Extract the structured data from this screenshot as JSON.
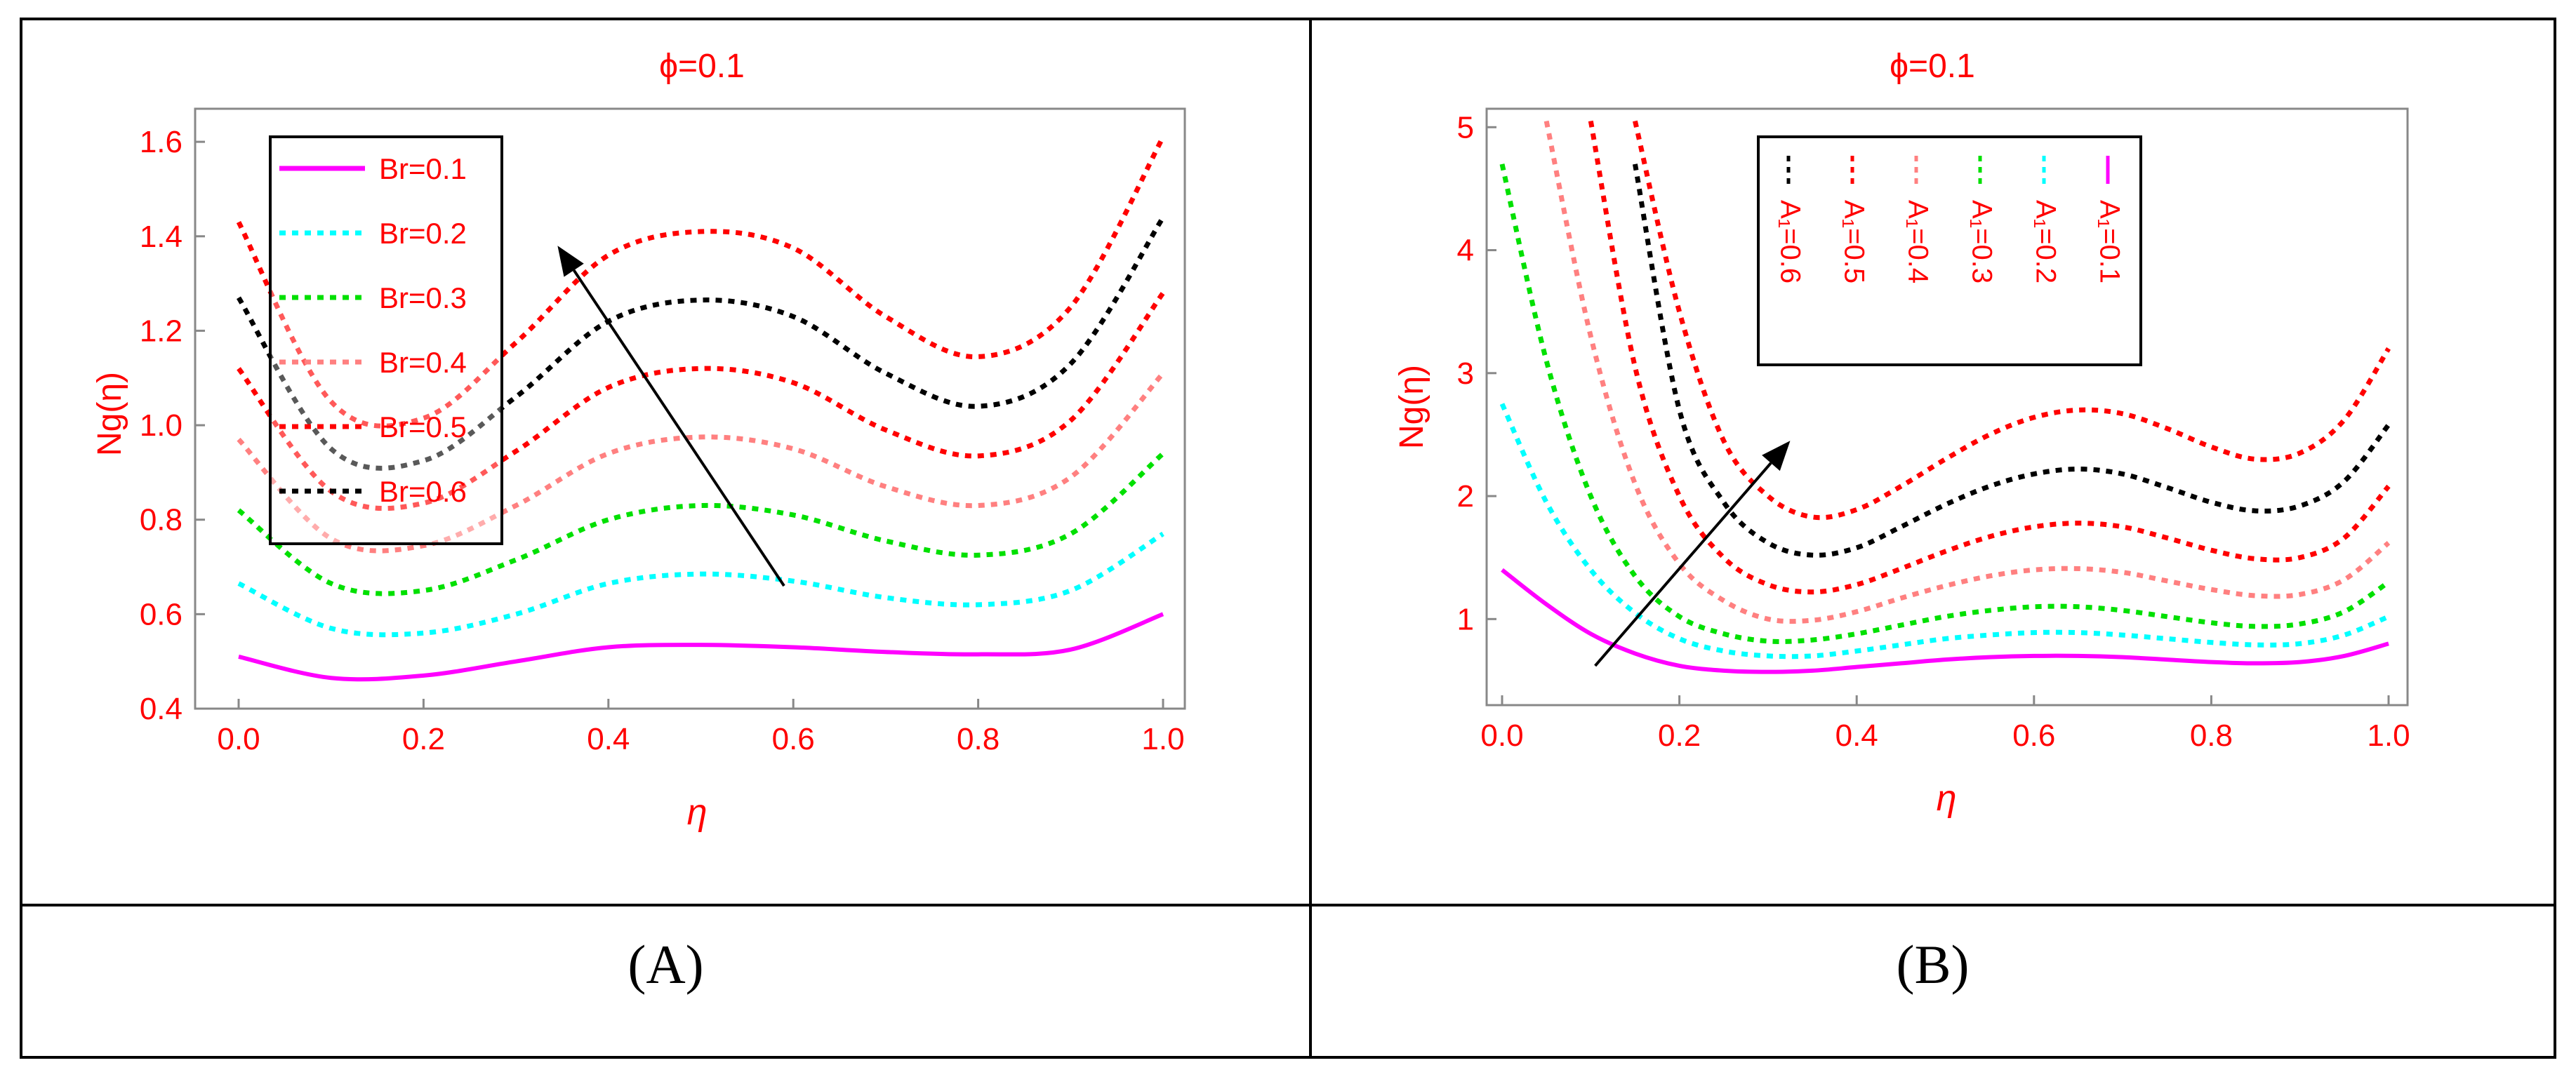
{
  "figure": {
    "panels": [
      {
        "id": "A",
        "caption": "(A)",
        "title": "ϕ=0.1",
        "xlabel": "η",
        "ylabel": "Ng(η)",
        "xticks": [
          "0.0",
          "0.2",
          "0.4",
          "0.6",
          "0.8",
          "1.0"
        ],
        "yticks": [
          "0.4",
          "0.6",
          "0.8",
          "1.0",
          "1.2",
          "1.4",
          "1.6"
        ]
      },
      {
        "id": "B",
        "caption": "(B)",
        "title": "ϕ=0.1",
        "xlabel": "η",
        "ylabel": "Ng(η)",
        "xticks": [
          "0.0",
          "0.2",
          "0.4",
          "0.6",
          "0.8",
          "1.0"
        ],
        "yticks": [
          "1",
          "2",
          "3",
          "4",
          "5"
        ]
      }
    ]
  },
  "chart_data": [
    {
      "type": "line",
      "title": "ϕ=0.1",
      "xlabel": "η",
      "ylabel": "Ng(η)",
      "xlim": [
        0,
        1
      ],
      "ylim": [
        0.4,
        1.67
      ],
      "grid": false,
      "legend": "top-left",
      "x": [
        0,
        0.1,
        0.2,
        0.3,
        0.4,
        0.5,
        0.6,
        0.7,
        0.8,
        0.9,
        1.0
      ],
      "series": [
        {
          "name": "Br=0.1",
          "style": "solid",
          "color": "#ff00ff",
          "values": [
            0.51,
            0.465,
            0.47,
            0.5,
            0.53,
            0.535,
            0.53,
            0.52,
            0.515,
            0.525,
            0.6
          ]
        },
        {
          "name": "Br=0.2",
          "style": "dotted",
          "color": "#00ffff",
          "values": [
            0.665,
            0.57,
            0.56,
            0.6,
            0.665,
            0.685,
            0.67,
            0.635,
            0.62,
            0.65,
            0.77
          ]
        },
        {
          "name": "Br=0.3",
          "style": "dotted",
          "color": "#00e000",
          "values": [
            0.82,
            0.665,
            0.65,
            0.715,
            0.8,
            0.83,
            0.81,
            0.755,
            0.725,
            0.77,
            0.94
          ]
        },
        {
          "name": "Br=0.4",
          "style": "dotted",
          "color": "#ff8080",
          "values": [
            0.97,
            0.76,
            0.745,
            0.83,
            0.94,
            0.975,
            0.95,
            0.87,
            0.83,
            0.89,
            1.11
          ]
        },
        {
          "name": "Br=0.5",
          "style": "dotted",
          "color": "#ff0000",
          "values": [
            1.12,
            0.86,
            0.835,
            0.945,
            1.08,
            1.12,
            1.09,
            0.99,
            0.935,
            1.01,
            1.28
          ]
        },
        {
          "name": "Br=0.6",
          "style": "dotted",
          "color": "#000000",
          "values": [
            1.27,
            0.95,
            0.925,
            1.06,
            1.22,
            1.265,
            1.23,
            1.11,
            1.04,
            1.13,
            1.44
          ]
        },
        {
          "name": "",
          "style": "dotted",
          "color": "#ff0000",
          "values": [
            1.43,
            1.05,
            1.015,
            1.175,
            1.36,
            1.41,
            1.375,
            1.23,
            1.145,
            1.25,
            1.61
          ]
        }
      ],
      "arrow": {
        "from": [
          0.59,
          0.66
        ],
        "to": [
          0.345,
          1.38
        ]
      }
    },
    {
      "type": "line",
      "title": "ϕ=0.1",
      "xlabel": "η",
      "ylabel": "Ng(η)",
      "xlim": [
        0,
        1
      ],
      "ylim": [
        0.3,
        5.15
      ],
      "grid": false,
      "legend": "top-right",
      "x": [
        0,
        0.05,
        0.1,
        0.15,
        0.2,
        0.25,
        0.3,
        0.35,
        0.4,
        0.45,
        0.5,
        0.55,
        0.6,
        0.65,
        0.7,
        0.75,
        0.8,
        0.85,
        0.9,
        0.95,
        1.0
      ],
      "series": [
        {
          "name": "A₁=0.1",
          "style": "solid",
          "color": "#ff00ff",
          "values": [
            1.4,
            1.12,
            0.88,
            0.72,
            0.62,
            0.58,
            0.57,
            0.58,
            0.61,
            0.64,
            0.67,
            0.69,
            0.7,
            0.7,
            0.69,
            0.67,
            0.65,
            0.64,
            0.65,
            0.7,
            0.8
          ]
        },
        {
          "name": "A₁=0.2",
          "style": "dotted",
          "color": "#00ffff",
          "values": [
            2.75,
            1.95,
            1.4,
            1.05,
            0.84,
            0.74,
            0.7,
            0.7,
            0.74,
            0.79,
            0.84,
            0.87,
            0.89,
            0.89,
            0.87,
            0.84,
            0.81,
            0.79,
            0.8,
            0.87,
            1.02
          ]
        },
        {
          "name": "A₁=0.3",
          "style": "dotted",
          "color": "#00e000",
          "values": [
            4.7,
            3.1,
            2.0,
            1.35,
            1.02,
            0.88,
            0.82,
            0.83,
            0.88,
            0.95,
            1.02,
            1.07,
            1.1,
            1.1,
            1.07,
            1.02,
            0.97,
            0.94,
            0.96,
            1.06,
            1.3
          ]
        },
        {
          "name": "A₁=0.4",
          "style": "dotted",
          "color": "#ff8080",
          "values": [
            null,
            5.05,
            3.3,
            2.1,
            1.45,
            1.15,
            1.0,
            0.99,
            1.06,
            1.17,
            1.27,
            1.35,
            1.4,
            1.41,
            1.38,
            1.31,
            1.24,
            1.19,
            1.2,
            1.32,
            1.62
          ]
        },
        {
          "name": "A₁=0.5",
          "style": "dotted",
          "color": "#ff0000",
          "values": [
            null,
            null,
            5.05,
            3.05,
            2.0,
            1.5,
            1.28,
            1.22,
            1.28,
            1.41,
            1.55,
            1.67,
            1.75,
            1.78,
            1.75,
            1.66,
            1.56,
            1.49,
            1.5,
            1.66,
            2.08
          ]
        },
        {
          "name": "A₁=0.6",
          "style": "dotted",
          "color": "#000000",
          "values": [
            null,
            null,
            null,
            4.7,
            2.7,
            1.95,
            1.62,
            1.52,
            1.58,
            1.75,
            1.93,
            2.08,
            2.18,
            2.22,
            2.18,
            2.07,
            1.95,
            1.88,
            1.92,
            2.12,
            2.58
          ]
        },
        {
          "name": "",
          "style": "dotted",
          "color": "#ff0000",
          "values": [
            null,
            null,
            null,
            5.05,
            3.5,
            2.45,
            2.0,
            1.83,
            1.89,
            2.08,
            2.3,
            2.5,
            2.64,
            2.7,
            2.67,
            2.55,
            2.4,
            2.3,
            2.35,
            2.62,
            3.2
          ]
        }
      ],
      "arrow": {
        "from": [
          0.105,
          0.62
        ],
        "to": [
          0.325,
          2.45
        ]
      }
    }
  ]
}
